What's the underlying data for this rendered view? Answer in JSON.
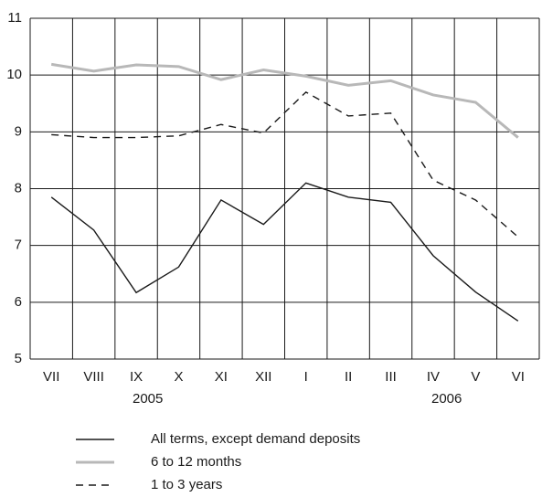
{
  "chart_data": {
    "type": "line",
    "categories": [
      "VII",
      "VIII",
      "IX",
      "X",
      "XI",
      "XII",
      "I",
      "II",
      "III",
      "IV",
      "V",
      "VI"
    ],
    "year_labels": [
      "2005",
      "2006"
    ],
    "series": [
      {
        "name": "All terms, except demand deposits",
        "color": "#1a1a1a",
        "dash": "solid",
        "values": [
          7.85,
          7.27,
          6.17,
          6.62,
          7.8,
          7.37,
          8.1,
          7.85,
          7.76,
          6.82,
          6.18,
          5.67
        ]
      },
      {
        "name": "6 to 12 months",
        "color": "#b8b8b8",
        "dash": "solid",
        "values": [
          10.19,
          10.07,
          10.18,
          10.15,
          9.92,
          10.09,
          9.98,
          9.82,
          9.9,
          9.65,
          9.52,
          8.9
        ]
      },
      {
        "name": "1 to 3 years",
        "color": "#1a1a1a",
        "dash": "dashed",
        "values": [
          8.95,
          8.9,
          8.9,
          8.93,
          9.13,
          8.98,
          9.7,
          9.28,
          9.33,
          8.15,
          7.8,
          7.15
        ]
      }
    ],
    "ylim": [
      5,
      11
    ],
    "yticks": [
      5,
      6,
      7,
      8,
      9,
      10,
      11
    ],
    "grid": true
  }
}
